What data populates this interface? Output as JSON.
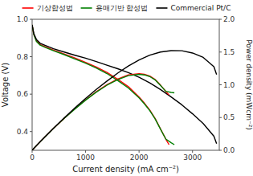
{
  "chart_data": {
    "type": "line",
    "title": "",
    "xlabel": "Current density (mA cm⁻²)",
    "ylabel": "Voltage (V)",
    "y2label": "Power density (mWcm⁻²)",
    "xlim": [
      0,
      3500
    ],
    "xticks": [
      0,
      1000,
      2000,
      3000
    ],
    "ylim": [
      0.3,
      1.0
    ],
    "yticks": [
      0.4,
      0.6,
      0.8,
      {
        "value": 1.0,
        "label": "1.0"
      }
    ],
    "y2lim": [
      0.0,
      2.0
    ],
    "y2ticks": [
      {
        "value": 0.0,
        "label": "0.0"
      },
      0.5,
      {
        "value": 1.0,
        "label": "1.0"
      },
      1.5,
      {
        "value": 2.0,
        "label": "2.0"
      }
    ],
    "grid": false,
    "legend": "top",
    "series": [
      {
        "name": "기상합성법",
        "color": "red",
        "x": [
          0,
          30,
          80,
          150,
          250,
          400,
          600,
          800,
          1000,
          1200,
          1400,
          1600,
          1800,
          2000,
          2100,
          2200,
          2300,
          2400,
          2500,
          2560
        ],
        "values": [
          0.97,
          0.92,
          0.885,
          0.865,
          0.852,
          0.835,
          0.815,
          0.793,
          0.77,
          0.745,
          0.716,
          0.68,
          0.64,
          0.585,
          0.552,
          0.515,
          0.47,
          0.415,
          0.36,
          0.33
        ]
      },
      {
        "name": "용매기반 합성법",
        "color": "green",
        "x": [
          0,
          30,
          80,
          150,
          250,
          400,
          600,
          800,
          1000,
          1200,
          1400,
          1600,
          1800,
          2000,
          2100,
          2200,
          2300,
          2400,
          2500,
          2600,
          2660
        ],
        "values": [
          0.97,
          0.92,
          0.882,
          0.862,
          0.849,
          0.832,
          0.811,
          0.788,
          0.765,
          0.74,
          0.71,
          0.673,
          0.633,
          0.58,
          0.548,
          0.512,
          0.468,
          0.413,
          0.36,
          0.34,
          0.33
        ]
      },
      {
        "name": "Commercial Pt/C",
        "color": "black",
        "x": [
          0,
          30,
          80,
          150,
          250,
          400,
          600,
          800,
          1000,
          1200,
          1400,
          1600,
          1800,
          2000,
          2200,
          2400,
          2600,
          2800,
          3000,
          3200,
          3400,
          3450
        ],
        "values": [
          0.97,
          0.925,
          0.892,
          0.872,
          0.86,
          0.843,
          0.825,
          0.808,
          0.792,
          0.774,
          0.755,
          0.736,
          0.715,
          0.69,
          0.66,
          0.625,
          0.585,
          0.543,
          0.495,
          0.443,
          0.375,
          0.335
        ]
      },
      {
        "color": "red",
        "axis": "y2",
        "x": [
          0,
          30,
          80,
          150,
          250,
          400,
          600,
          800,
          1000,
          1200,
          1400,
          1600,
          1800,
          2000,
          2100,
          2200,
          2300,
          2400,
          2500,
          2560
        ],
        "values": [
          0.0,
          0.028,
          0.071,
          0.13,
          0.213,
          0.334,
          0.489,
          0.634,
          0.77,
          0.894,
          1.002,
          1.088,
          1.152,
          1.17,
          1.159,
          1.133,
          1.081,
          0.996,
          0.9,
          0.845
        ]
      },
      {
        "color": "green",
        "axis": "y2",
        "x": [
          0,
          30,
          80,
          150,
          250,
          400,
          600,
          800,
          1000,
          1200,
          1400,
          1600,
          1800,
          2000,
          2100,
          2200,
          2300,
          2400,
          2500,
          2600,
          2660
        ],
        "values": [
          0.0,
          0.028,
          0.071,
          0.129,
          0.212,
          0.333,
          0.487,
          0.63,
          0.765,
          0.888,
          0.994,
          1.077,
          1.139,
          1.16,
          1.151,
          1.126,
          1.076,
          0.991,
          0.9,
          0.884,
          0.878
        ]
      },
      {
        "color": "black",
        "axis": "y2",
        "x": [
          0,
          30,
          80,
          150,
          250,
          400,
          600,
          800,
          1000,
          1200,
          1400,
          1600,
          1800,
          2000,
          2200,
          2400,
          2600,
          2800,
          3000,
          3200,
          3400,
          3450
        ],
        "values": [
          0.0,
          0.028,
          0.071,
          0.131,
          0.215,
          0.337,
          0.495,
          0.646,
          0.792,
          0.929,
          1.057,
          1.178,
          1.287,
          1.38,
          1.452,
          1.5,
          1.521,
          1.52,
          1.485,
          1.418,
          1.275,
          1.157
        ]
      }
    ]
  }
}
